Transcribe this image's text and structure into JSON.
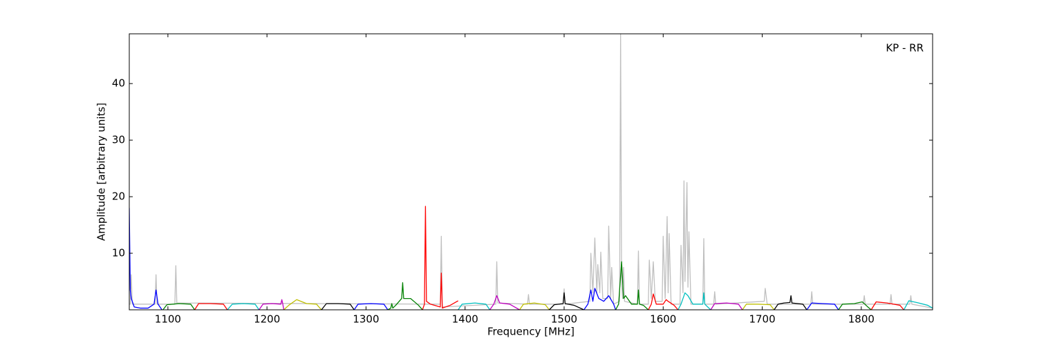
{
  "chart_data": {
    "type": "line",
    "annotation": "KP - RR",
    "x_label": "Frequency [MHz]",
    "y_label": "Amplitude [arbitrary units]",
    "xlim": [
      1061,
      1872
    ],
    "ylim": [
      0,
      48.8
    ],
    "xticks": [
      1100,
      1200,
      1300,
      1400,
      1500,
      1600,
      1700,
      1800
    ],
    "yticks": [
      10,
      20,
      30,
      40
    ],
    "grid": false,
    "series": [
      {
        "color": "#bfbfbf",
        "x": [
          1061,
          1062,
          1063,
          1064,
          1087,
          1088,
          1089,
          1107,
          1108,
          1109,
          1375,
          1376,
          1377,
          1431,
          1432,
          1433,
          1463,
          1464,
          1465,
          1499,
          1500,
          1501,
          1526,
          1527,
          1529,
          1531,
          1533,
          1534,
          1536,
          1537,
          1539,
          1544,
          1545,
          1547,
          1548,
          1550,
          1556,
          1557,
          1558,
          1559,
          1560,
          1561,
          1574,
          1575,
          1576,
          1585,
          1586,
          1588,
          1590,
          1592,
          1599,
          1600,
          1602,
          1604,
          1605,
          1606,
          1608,
          1617,
          1618,
          1620,
          1621,
          1622,
          1624,
          1625,
          1626,
          1628,
          1640,
          1641,
          1642,
          1651,
          1652,
          1653,
          1702,
          1703,
          1705,
          1749,
          1750,
          1751,
          1802,
          1803,
          1804,
          1829,
          1830,
          1831,
          1849,
          1850,
          1851,
          1872
        ],
        "values": [
          1,
          1,
          6.2,
          1,
          1,
          6.2,
          1,
          1,
          7.8,
          1.2,
          1,
          13,
          0.5,
          1,
          8.5,
          1.2,
          1,
          2.7,
          1,
          1,
          3.7,
          1,
          1.5,
          10,
          3,
          12.7,
          3,
          8,
          3,
          10.2,
          2,
          2,
          14.8,
          2,
          7.5,
          1,
          1.5,
          48.8,
          5,
          2,
          7.5,
          1.5,
          1,
          10.4,
          1,
          1,
          8.8,
          2,
          8.5,
          1.5,
          1.5,
          13,
          2,
          16.5,
          3,
          13.5,
          1,
          1,
          11.4,
          3,
          22.8,
          5,
          22.5,
          4,
          13.8,
          1,
          1,
          12.6,
          1,
          1,
          3.2,
          1,
          1.5,
          3.8,
          1,
          1,
          3.2,
          1,
          1,
          2.5,
          1,
          1,
          2.7,
          1,
          1,
          2.5,
          1,
          0.3
        ]
      },
      {
        "color": "#0000ff",
        "x": [
          1061,
          1062,
          1063,
          1066,
          1072,
          1080,
          1086,
          1088,
          1090,
          1094
        ],
        "values": [
          18,
          3.5,
          2,
          0.5,
          0.3,
          0.3,
          1,
          3.5,
          1,
          0
        ]
      },
      {
        "color": "#008000",
        "x": [
          1095,
          1099,
          1111,
          1123,
          1127
        ],
        "values": [
          0,
          0.9,
          1.1,
          1,
          0
        ]
      },
      {
        "color": "#ff0000",
        "x": [
          1127,
          1131,
          1143,
          1156,
          1160
        ],
        "values": [
          0,
          1.1,
          1.1,
          1,
          0
        ]
      },
      {
        "color": "#00bfbf",
        "x": [
          1160,
          1165,
          1176,
          1188,
          1192
        ],
        "values": [
          0,
          1,
          1.1,
          1,
          0
        ]
      },
      {
        "color": "#bf00bf",
        "x": [
          1192,
          1196,
          1205,
          1214,
          1215,
          1216,
          1217
        ],
        "values": [
          0,
          1,
          1.1,
          1,
          1.8,
          1,
          0
        ]
      },
      {
        "color": "#bfbf00",
        "x": [
          1217,
          1222,
          1230,
          1240,
          1250,
          1255
        ],
        "values": [
          0,
          0.8,
          1.8,
          1.1,
          1,
          0
        ]
      },
      {
        "color": "#000000",
        "x": [
          1255,
          1260,
          1272,
          1284,
          1288
        ],
        "values": [
          0,
          1.1,
          1.1,
          1,
          0
        ]
      },
      {
        "color": "#0000ff",
        "x": [
          1288,
          1292,
          1305,
          1318,
          1322
        ],
        "values": [
          0,
          1,
          1.1,
          1,
          0
        ]
      },
      {
        "color": "#008000",
        "x": [
          1322,
          1325,
          1326,
          1327,
          1330,
          1336,
          1337,
          1338,
          1345,
          1353,
          1357
        ],
        "values": [
          0,
          0.3,
          1.1,
          0.3,
          0.8,
          2,
          4.8,
          2,
          2,
          0.8,
          0
        ]
      },
      {
        "color": "#ff0000",
        "x": [
          1357,
          1359,
          1360,
          1361,
          1365,
          1375,
          1376,
          1377,
          1385,
          1393
        ],
        "values": [
          0,
          1,
          18.3,
          1.5,
          1,
          0.5,
          6.5,
          0.3,
          0.8,
          1.6
        ]
      },
      {
        "color": "#00bfbf",
        "x": [
          1393,
          1397,
          1410,
          1421,
          1425
        ],
        "values": [
          0,
          1,
          1.2,
          1,
          0
        ]
      },
      {
        "color": "#bf00bf",
        "x": [
          1425,
          1429,
          1432,
          1435,
          1445,
          1455
        ],
        "values": [
          0,
          1,
          2.5,
          1.2,
          1,
          0
        ]
      },
      {
        "color": "#bfbf00",
        "x": [
          1455,
          1459,
          1470,
          1481,
          1485
        ],
        "values": [
          0,
          1,
          1.2,
          0.9,
          0
        ]
      },
      {
        "color": "#000000",
        "x": [
          1485,
          1490,
          1499,
          1500,
          1501,
          1510,
          1520
        ],
        "values": [
          0,
          0.9,
          1.1,
          3,
          1.1,
          0.8,
          0
        ]
      },
      {
        "color": "#0000ff",
        "x": [
          1520,
          1524,
          1527,
          1529,
          1531,
          1535,
          1540,
          1545,
          1550,
          1552
        ],
        "values": [
          0,
          1,
          3.5,
          1.5,
          3.8,
          2,
          1.5,
          2.5,
          1,
          0
        ]
      },
      {
        "color": "#008000",
        "x": [
          1552,
          1555,
          1558,
          1560,
          1562,
          1568,
          1574,
          1575,
          1576,
          1580,
          1585
        ],
        "values": [
          0,
          1,
          8.5,
          2,
          2.5,
          1,
          1,
          3.5,
          1,
          0.8,
          0
        ]
      },
      {
        "color": "#ff0000",
        "x": [
          1585,
          1588,
          1590,
          1593,
          1600,
          1603,
          1605,
          1611,
          1615
        ],
        "values": [
          0,
          1,
          2.8,
          1,
          1,
          1.8,
          1.5,
          0.8,
          0
        ]
      },
      {
        "color": "#00bfbf",
        "x": [
          1615,
          1618,
          1622,
          1625,
          1630,
          1640,
          1641,
          1642,
          1648
        ],
        "values": [
          0,
          1,
          3,
          2.5,
          1,
          1,
          3,
          1,
          0
        ]
      },
      {
        "color": "#bf00bf",
        "x": [
          1648,
          1652,
          1664,
          1676,
          1680
        ],
        "values": [
          0,
          1.1,
          1.2,
          1,
          0
        ]
      },
      {
        "color": "#bfbf00",
        "x": [
          1680,
          1684,
          1696,
          1708,
          1712
        ],
        "values": [
          0,
          1,
          1,
          0.9,
          0
        ]
      },
      {
        "color": "#000000",
        "x": [
          1712,
          1716,
          1722,
          1728,
          1729,
          1730,
          1741,
          1745
        ],
        "values": [
          0,
          1,
          1.2,
          1.3,
          2.5,
          1.2,
          1,
          0
        ]
      },
      {
        "color": "#0000ff",
        "x": [
          1745,
          1750,
          1761,
          1773,
          1777
        ],
        "values": [
          0,
          1.2,
          1.1,
          1,
          0
        ]
      },
      {
        "color": "#008000",
        "x": [
          1777,
          1781,
          1793,
          1801,
          1806,
          1810
        ],
        "values": [
          0,
          1,
          1.1,
          1.4,
          0.6,
          0
        ]
      },
      {
        "color": "#ff0000",
        "x": [
          1810,
          1815,
          1826,
          1839,
          1843
        ],
        "values": [
          0,
          1.4,
          1.2,
          0.8,
          0
        ]
      },
      {
        "color": "#00bfbf",
        "x": [
          1843,
          1848,
          1858,
          1867,
          1872
        ],
        "values": [
          0,
          1.6,
          1.2,
          0.8,
          0.3
        ]
      }
    ]
  }
}
